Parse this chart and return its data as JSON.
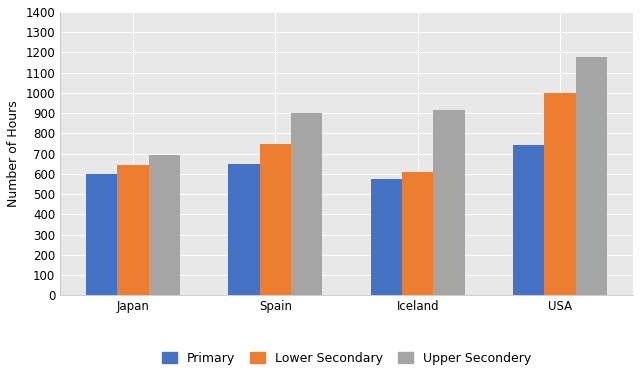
{
  "countries": [
    "Japan",
    "Spain",
    "Iceland",
    "USA"
  ],
  "series": {
    "Primary": [
      600,
      650,
      575,
      740
    ],
    "Lower Secondary": [
      645,
      745,
      610,
      1000
    ],
    "Upper Secondery": [
      695,
      900,
      915,
      1175
    ]
  },
  "colors": {
    "Primary": "#4472C4",
    "Lower Secondary": "#ED7D31",
    "Upper Secondery": "#A5A5A5"
  },
  "ylabel": "Number of Hours",
  "ylim": [
    0,
    1400
  ],
  "yticks": [
    0,
    100,
    200,
    300,
    400,
    500,
    600,
    700,
    800,
    900,
    1000,
    1100,
    1200,
    1300,
    1400
  ],
  "plot_bg_color": "#e8e8e8",
  "fig_bg_color": "#ffffff",
  "legend_labels": [
    "Primary",
    "Lower Secondary",
    "Upper Secondery"
  ],
  "bar_width": 0.22,
  "grid_color": "#ffffff",
  "grid_linewidth": 0.7,
  "tick_fontsize": 8.5,
  "ylabel_fontsize": 9,
  "legend_fontsize": 9
}
